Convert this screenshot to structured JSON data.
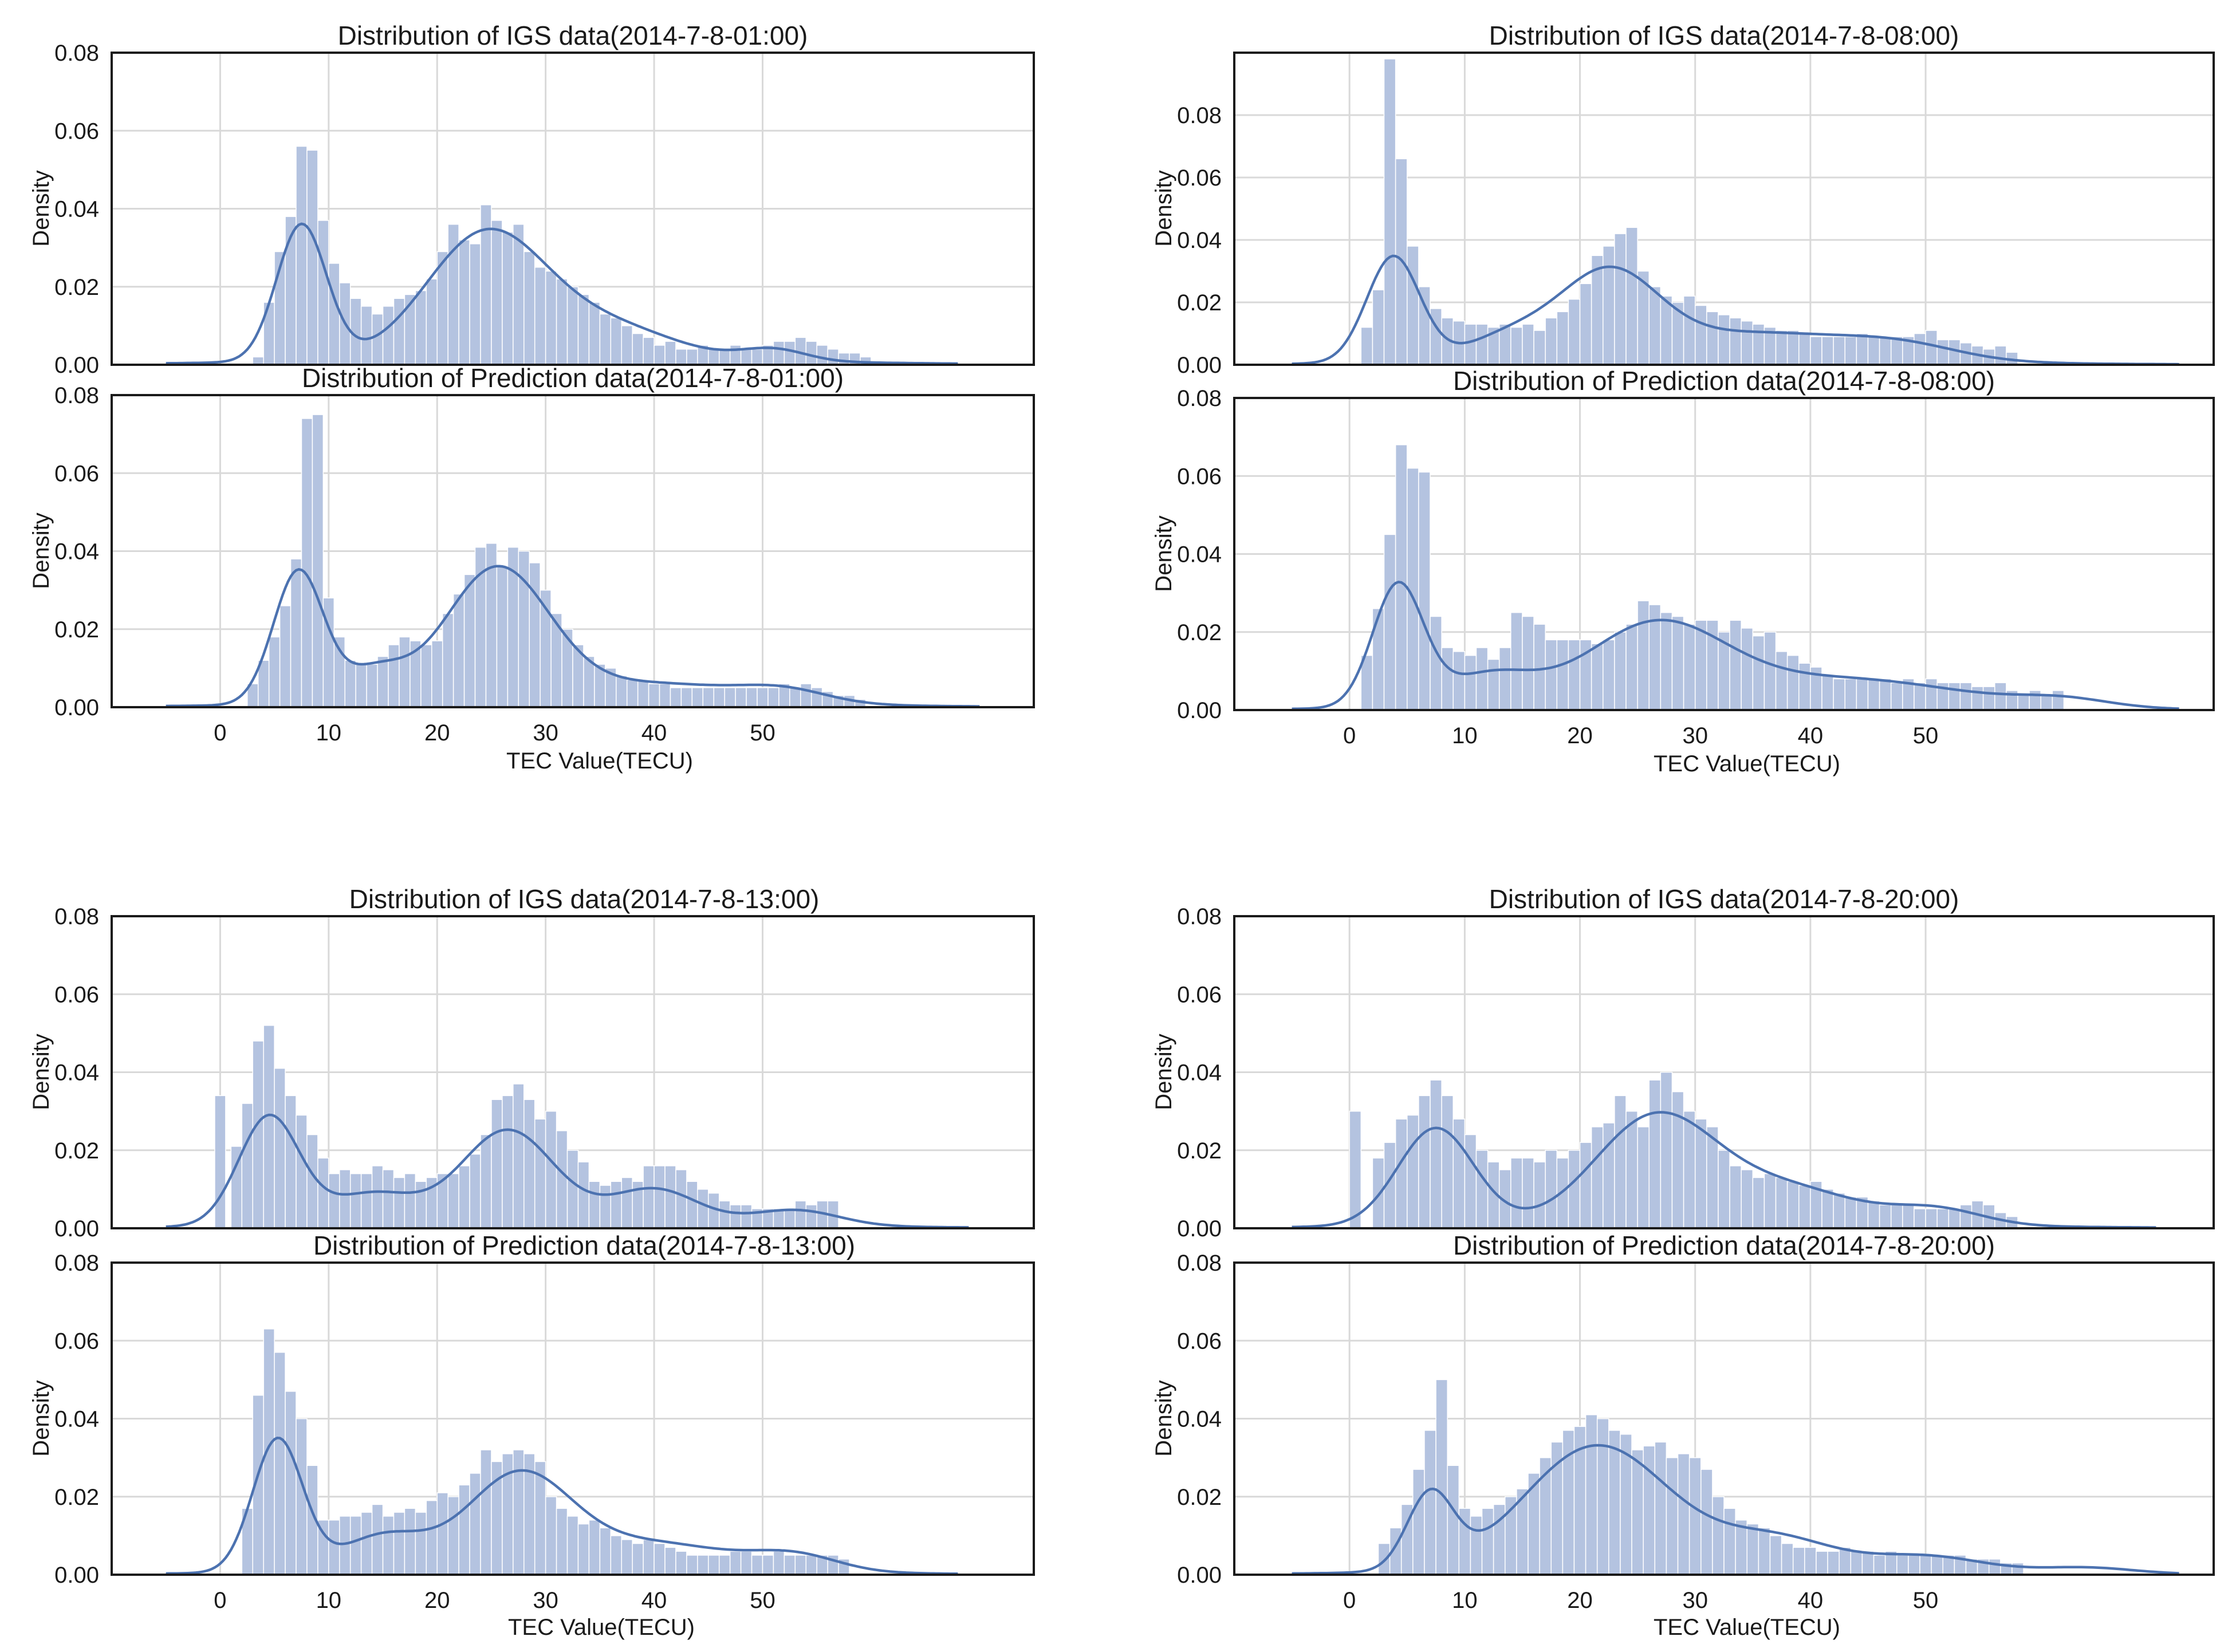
{
  "chart_data": [
    {
      "type": "bar",
      "title": "Distribution of IGS data(2014-7-8-01:00)",
      "ylabel": "Density",
      "xlabel": "",
      "ylim": [
        0,
        0.08
      ],
      "xlim": [
        -10,
        75
      ],
      "yticks": [
        "0.00",
        "0.02",
        "0.04",
        "0.06",
        "0.08"
      ],
      "xticks": [],
      "bin_start": 3,
      "bin_width": 1,
      "values": [
        0.002,
        0.016,
        0.029,
        0.038,
        0.056,
        0.055,
        0.037,
        0.026,
        0.021,
        0.017,
        0.015,
        0.013,
        0.015,
        0.017,
        0.018,
        0.019,
        0.022,
        0.029,
        0.036,
        0.032,
        0.031,
        0.041,
        0.037,
        0.034,
        0.036,
        0.029,
        0.025,
        0.024,
        0.022,
        0.02,
        0.018,
        0.016,
        0.013,
        0.012,
        0.01,
        0.008,
        0.007,
        0.005,
        0.006,
        0.004,
        0.004,
        0.005,
        0.004,
        0.004,
        0.005,
        0.004,
        0.004,
        0.005,
        0.006,
        0.006,
        0.007,
        0.006,
        0.005,
        0.004,
        0.003,
        0.003,
        0.002
      ],
      "kde": {
        "peaks": [
          [
            7.5,
            0.035,
            2.3
          ],
          [
            24.5,
            0.032,
            5.5
          ],
          [
            36,
            0.008,
            6
          ],
          [
            51,
            0.003,
            3
          ]
        ],
        "floor": 0.0015,
        "tail_end": 68
      }
    },
    {
      "type": "bar",
      "title": "Distribution of Prediction data(2014-7-8-01:00)",
      "ylabel": "Density",
      "xlabel": "TEC Value(TECU)",
      "ylim": [
        0,
        0.08
      ],
      "xlim": [
        -10,
        75
      ],
      "yticks": [
        "0.00",
        "0.02",
        "0.04",
        "0.06",
        "0.08"
      ],
      "xticks": [
        "0",
        "10",
        "20",
        "30",
        "40",
        "50"
      ],
      "bin_start": 2.5,
      "bin_width": 1,
      "values": [
        0.006,
        0.012,
        0.018,
        0.026,
        0.038,
        0.074,
        0.075,
        0.028,
        0.018,
        0.012,
        0.011,
        0.011,
        0.013,
        0.016,
        0.018,
        0.017,
        0.016,
        0.017,
        0.024,
        0.029,
        0.034,
        0.041,
        0.042,
        0.036,
        0.041,
        0.04,
        0.037,
        0.03,
        0.024,
        0.02,
        0.016,
        0.013,
        0.011,
        0.01,
        0.008,
        0.007,
        0.007,
        0.006,
        0.006,
        0.005,
        0.005,
        0.005,
        0.005,
        0.005,
        0.005,
        0.005,
        0.005,
        0.005,
        0.005,
        0.006,
        0.005,
        0.006,
        0.005,
        0.004,
        0.003,
        0.003,
        0.002
      ],
      "kde": {
        "peaks": [
          [
            7.2,
            0.034,
            2.3
          ],
          [
            25.5,
            0.034,
            4.8
          ],
          [
            14,
            0.008,
            3
          ],
          [
            40,
            0.005,
            8
          ],
          [
            52,
            0.003,
            4
          ]
        ],
        "floor": 0.0012,
        "tail_end": 70
      }
    },
    {
      "type": "bar",
      "title": "Distribution of IGS data(2014-7-8-08:00)",
      "ylabel": "Density",
      "xlabel": "",
      "ylim": [
        0,
        0.1
      ],
      "xlim": [
        -10,
        75
      ],
      "yticks": [
        "0.00",
        "0.02",
        "0.04",
        "0.06",
        "0.08"
      ],
      "xticks": [],
      "bin_start": 1,
      "bin_width": 1,
      "values": [
        0.012,
        0.024,
        0.098,
        0.066,
        0.038,
        0.025,
        0.018,
        0.015,
        0.014,
        0.013,
        0.013,
        0.012,
        0.013,
        0.012,
        0.013,
        0.011,
        0.015,
        0.017,
        0.021,
        0.026,
        0.035,
        0.038,
        0.042,
        0.044,
        0.03,
        0.025,
        0.022,
        0.02,
        0.022,
        0.019,
        0.017,
        0.016,
        0.015,
        0.014,
        0.013,
        0.012,
        0.011,
        0.011,
        0.01,
        0.009,
        0.009,
        0.009,
        0.009,
        0.01,
        0.009,
        0.009,
        0.009,
        0.009,
        0.01,
        0.011,
        0.008,
        0.008,
        0.007,
        0.006,
        0.005,
        0.006,
        0.004
      ],
      "kde": {
        "peaks": [
          [
            3.8,
            0.034,
            2.3
          ],
          [
            22.5,
            0.026,
            4.2
          ],
          [
            14,
            0.008,
            4
          ],
          [
            35,
            0.009,
            9
          ],
          [
            48,
            0.004,
            5
          ]
        ],
        "floor": 0.0012,
        "tail_end": 72
      }
    },
    {
      "type": "bar",
      "title": "Distribution of Prediction data(2014-7-8-08:00)",
      "ylabel": "Density",
      "xlabel": "TEC Value(TECU)",
      "ylim": [
        0,
        0.08
      ],
      "xlim": [
        -10,
        75
      ],
      "yticks": [
        "0.00",
        "0.02",
        "0.04",
        "0.06",
        "0.08"
      ],
      "xticks": [
        "0",
        "10",
        "20",
        "30",
        "40",
        "50"
      ],
      "bin_start": 1,
      "bin_width": 1,
      "values": [
        0.014,
        0.026,
        0.045,
        0.068,
        0.062,
        0.061,
        0.024,
        0.016,
        0.015,
        0.014,
        0.016,
        0.013,
        0.016,
        0.025,
        0.024,
        0.022,
        0.018,
        0.018,
        0.018,
        0.018,
        0.017,
        0.018,
        0.02,
        0.022,
        0.028,
        0.027,
        0.025,
        0.024,
        0.022,
        0.023,
        0.023,
        0.02,
        0.023,
        0.021,
        0.019,
        0.02,
        0.015,
        0.014,
        0.012,
        0.011,
        0.009,
        0.008,
        0.008,
        0.008,
        0.008,
        0.008,
        0.007,
        0.008,
        0.007,
        0.008,
        0.007,
        0.007,
        0.007,
        0.006,
        0.006,
        0.007,
        0.005,
        0.004,
        0.005,
        0.004,
        0.005
      ],
      "kde": {
        "peaks": [
          [
            4.2,
            0.031,
            2.2
          ],
          [
            26.5,
            0.02,
            6
          ],
          [
            12,
            0.008,
            4
          ],
          [
            43,
            0.007,
            10
          ],
          [
            62,
            0.002,
            4
          ]
        ],
        "floor": 0.0012,
        "tail_end": 72
      }
    },
    {
      "type": "bar",
      "title": "Distribution of IGS data(2014-7-8-13:00)",
      "ylabel": "Density",
      "xlabel": "",
      "ylim": [
        0,
        0.08
      ],
      "xlim": [
        -10,
        75
      ],
      "yticks": [
        "0.00",
        "0.02",
        "0.04",
        "0.06",
        "0.08"
      ],
      "xticks": [],
      "bin_start": 1,
      "bin_width": 1,
      "values": [
        0.021,
        0.032,
        0.048,
        0.052,
        0.041,
        0.034,
        0.029,
        0.024,
        0.018,
        0.014,
        0.015,
        0.014,
        0.014,
        0.016,
        0.015,
        0.013,
        0.014,
        0.012,
        0.013,
        0.014,
        0.014,
        0.016,
        0.019,
        0.024,
        0.033,
        0.034,
        0.037,
        0.033,
        0.028,
        0.03,
        0.025,
        0.02,
        0.017,
        0.012,
        0.011,
        0.012,
        0.013,
        0.012,
        0.016,
        0.016,
        0.016,
        0.015,
        0.012,
        0.01,
        0.009,
        0.007,
        0.006,
        0.006,
        0.005,
        0.005,
        0.005,
        0.005,
        0.007,
        0.006,
        0.007,
        0.007
      ],
      "kde": {
        "peaks": [
          [
            4.5,
            0.028,
            2.8
          ],
          [
            26.5,
            0.024,
            4.3
          ],
          [
            14,
            0.008,
            4
          ],
          [
            40,
            0.009,
            4
          ],
          [
            53,
            0.004,
            4
          ]
        ],
        "floor": 0.0012,
        "tail_end": 69
      },
      "outlier_bar": {
        "x": -0.5,
        "value": 0.034
      }
    },
    {
      "type": "bar",
      "title": "Distribution of Prediction data(2014-7-8-13:00)",
      "ylabel": "Density",
      "xlabel": "TEC Value(TECU)",
      "ylim": [
        0,
        0.08
      ],
      "xlim": [
        -10,
        75
      ],
      "yticks": [
        "0.00",
        "0.02",
        "0.04",
        "0.06",
        "0.08"
      ],
      "xticks": [
        "0",
        "10",
        "20",
        "30",
        "40",
        "50"
      ],
      "bin_start": 2,
      "bin_width": 1,
      "values": [
        0.017,
        0.046,
        0.063,
        0.057,
        0.047,
        0.04,
        0.028,
        0.014,
        0.014,
        0.015,
        0.015,
        0.016,
        0.018,
        0.015,
        0.016,
        0.017,
        0.016,
        0.019,
        0.021,
        0.02,
        0.023,
        0.026,
        0.032,
        0.029,
        0.031,
        0.032,
        0.031,
        0.029,
        0.02,
        0.017,
        0.015,
        0.013,
        0.014,
        0.012,
        0.01,
        0.009,
        0.008,
        0.009,
        0.008,
        0.007,
        0.006,
        0.005,
        0.005,
        0.005,
        0.005,
        0.006,
        0.006,
        0.005,
        0.005,
        0.006,
        0.005,
        0.005,
        0.005,
        0.005,
        0.005,
        0.004
      ],
      "kde": {
        "peaks": [
          [
            5.3,
            0.034,
            2.3
          ],
          [
            27.5,
            0.024,
            4.8
          ],
          [
            15,
            0.009,
            4
          ],
          [
            40,
            0.007,
            7
          ],
          [
            53,
            0.004,
            4
          ]
        ],
        "floor": 0.0012,
        "tail_end": 68
      }
    },
    {
      "type": "bar",
      "title": "Distribution of IGS data(2014-7-8-20:00)",
      "ylabel": "Density",
      "xlabel": "",
      "ylim": [
        0,
        0.08
      ],
      "xlim": [
        -10,
        75
      ],
      "yticks": [
        "0.00",
        "0.02",
        "0.04",
        "0.06",
        "0.08"
      ],
      "xticks": [],
      "bin_start": 2,
      "bin_width": 1,
      "values": [
        0.018,
        0.022,
        0.028,
        0.029,
        0.034,
        0.038,
        0.034,
        0.028,
        0.024,
        0.02,
        0.017,
        0.015,
        0.018,
        0.018,
        0.017,
        0.02,
        0.018,
        0.02,
        0.022,
        0.026,
        0.027,
        0.034,
        0.03,
        0.026,
        0.038,
        0.04,
        0.035,
        0.03,
        0.028,
        0.026,
        0.02,
        0.016,
        0.015,
        0.013,
        0.014,
        0.013,
        0.012,
        0.011,
        0.012,
        0.01,
        0.009,
        0.008,
        0.008,
        0.007,
        0.006,
        0.006,
        0.006,
        0.005,
        0.005,
        0.005,
        0.005,
        0.006,
        0.007,
        0.006,
        0.004,
        0.003
      ],
      "kde": {
        "peaks": [
          [
            7.5,
            0.025,
            3.3
          ],
          [
            26.5,
            0.027,
            5.2
          ],
          [
            38,
            0.009,
            6
          ],
          [
            51,
            0.004,
            4
          ]
        ],
        "floor": 0.0012,
        "tail_end": 70
      },
      "outlier_bar": {
        "x": 0,
        "value": 0.03
      }
    },
    {
      "type": "bar",
      "title": "Distribution of Prediction data(2014-7-8-20:00)",
      "ylabel": "Density",
      "xlabel": "TEC Value(TECU)",
      "ylim": [
        0,
        0.08
      ],
      "xlim": [
        -10,
        75
      ],
      "yticks": [
        "0.00",
        "0.02",
        "0.04",
        "0.06",
        "0.08"
      ],
      "xticks": [
        "0",
        "10",
        "20",
        "30",
        "40",
        "50"
      ],
      "bin_start": 2.5,
      "bin_width": 1,
      "values": [
        0.008,
        0.012,
        0.018,
        0.027,
        0.037,
        0.05,
        0.028,
        0.017,
        0.015,
        0.017,
        0.018,
        0.02,
        0.022,
        0.026,
        0.03,
        0.034,
        0.037,
        0.038,
        0.041,
        0.04,
        0.037,
        0.036,
        0.032,
        0.033,
        0.034,
        0.03,
        0.031,
        0.03,
        0.027,
        0.02,
        0.017,
        0.014,
        0.013,
        0.012,
        0.01,
        0.008,
        0.007,
        0.007,
        0.006,
        0.006,
        0.007,
        0.006,
        0.006,
        0.005,
        0.006,
        0.005,
        0.005,
        0.005,
        0.005,
        0.005,
        0.005,
        0.004,
        0.004,
        0.004,
        0.003,
        0.003
      ],
      "kde": {
        "peaks": [
          [
            7,
            0.019,
            2
          ],
          [
            21.5,
            0.032,
            6.3
          ],
          [
            37,
            0.008,
            5
          ],
          [
            50,
            0.004,
            5
          ],
          [
            64,
            0.0015,
            4
          ]
        ],
        "floor": 0.0012,
        "tail_end": 72
      }
    }
  ]
}
